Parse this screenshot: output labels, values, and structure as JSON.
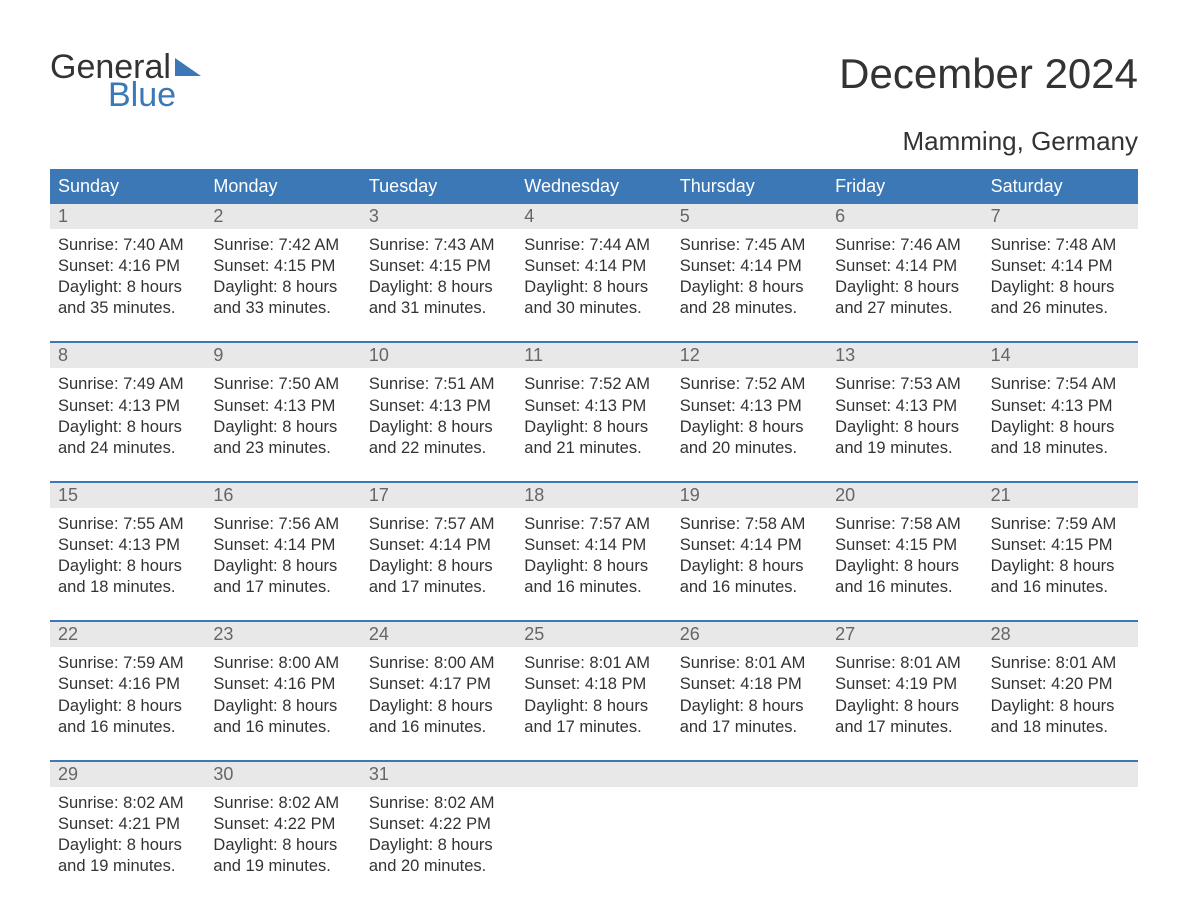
{
  "logo": {
    "word1": "General",
    "word2": "Blue"
  },
  "title": "December 2024",
  "location": "Mamming, Germany",
  "colors": {
    "header_bg": "#3b78b5",
    "header_fg": "#ffffff",
    "daynum_bg": "#e8e8e8",
    "daynum_fg": "#666666",
    "rule": "#3b78b5",
    "text": "#333333",
    "page_bg": "#ffffff"
  },
  "fonts": {
    "title_size": 42,
    "location_size": 26,
    "dow_size": 18,
    "body_size": 16.5
  },
  "dow": [
    "Sunday",
    "Monday",
    "Tuesday",
    "Wednesday",
    "Thursday",
    "Friday",
    "Saturday"
  ],
  "weeks": [
    [
      {
        "num": "1",
        "sunrise": "Sunrise: 7:40 AM",
        "sunset": "Sunset: 4:16 PM",
        "d1": "Daylight: 8 hours",
        "d2": "and 35 minutes."
      },
      {
        "num": "2",
        "sunrise": "Sunrise: 7:42 AM",
        "sunset": "Sunset: 4:15 PM",
        "d1": "Daylight: 8 hours",
        "d2": "and 33 minutes."
      },
      {
        "num": "3",
        "sunrise": "Sunrise: 7:43 AM",
        "sunset": "Sunset: 4:15 PM",
        "d1": "Daylight: 8 hours",
        "d2": "and 31 minutes."
      },
      {
        "num": "4",
        "sunrise": "Sunrise: 7:44 AM",
        "sunset": "Sunset: 4:14 PM",
        "d1": "Daylight: 8 hours",
        "d2": "and 30 minutes."
      },
      {
        "num": "5",
        "sunrise": "Sunrise: 7:45 AM",
        "sunset": "Sunset: 4:14 PM",
        "d1": "Daylight: 8 hours",
        "d2": "and 28 minutes."
      },
      {
        "num": "6",
        "sunrise": "Sunrise: 7:46 AM",
        "sunset": "Sunset: 4:14 PM",
        "d1": "Daylight: 8 hours",
        "d2": "and 27 minutes."
      },
      {
        "num": "7",
        "sunrise": "Sunrise: 7:48 AM",
        "sunset": "Sunset: 4:14 PM",
        "d1": "Daylight: 8 hours",
        "d2": "and 26 minutes."
      }
    ],
    [
      {
        "num": "8",
        "sunrise": "Sunrise: 7:49 AM",
        "sunset": "Sunset: 4:13 PM",
        "d1": "Daylight: 8 hours",
        "d2": "and 24 minutes."
      },
      {
        "num": "9",
        "sunrise": "Sunrise: 7:50 AM",
        "sunset": "Sunset: 4:13 PM",
        "d1": "Daylight: 8 hours",
        "d2": "and 23 minutes."
      },
      {
        "num": "10",
        "sunrise": "Sunrise: 7:51 AM",
        "sunset": "Sunset: 4:13 PM",
        "d1": "Daylight: 8 hours",
        "d2": "and 22 minutes."
      },
      {
        "num": "11",
        "sunrise": "Sunrise: 7:52 AM",
        "sunset": "Sunset: 4:13 PM",
        "d1": "Daylight: 8 hours",
        "d2": "and 21 minutes."
      },
      {
        "num": "12",
        "sunrise": "Sunrise: 7:52 AM",
        "sunset": "Sunset: 4:13 PM",
        "d1": "Daylight: 8 hours",
        "d2": "and 20 minutes."
      },
      {
        "num": "13",
        "sunrise": "Sunrise: 7:53 AM",
        "sunset": "Sunset: 4:13 PM",
        "d1": "Daylight: 8 hours",
        "d2": "and 19 minutes."
      },
      {
        "num": "14",
        "sunrise": "Sunrise: 7:54 AM",
        "sunset": "Sunset: 4:13 PM",
        "d1": "Daylight: 8 hours",
        "d2": "and 18 minutes."
      }
    ],
    [
      {
        "num": "15",
        "sunrise": "Sunrise: 7:55 AM",
        "sunset": "Sunset: 4:13 PM",
        "d1": "Daylight: 8 hours",
        "d2": "and 18 minutes."
      },
      {
        "num": "16",
        "sunrise": "Sunrise: 7:56 AM",
        "sunset": "Sunset: 4:14 PM",
        "d1": "Daylight: 8 hours",
        "d2": "and 17 minutes."
      },
      {
        "num": "17",
        "sunrise": "Sunrise: 7:57 AM",
        "sunset": "Sunset: 4:14 PM",
        "d1": "Daylight: 8 hours",
        "d2": "and 17 minutes."
      },
      {
        "num": "18",
        "sunrise": "Sunrise: 7:57 AM",
        "sunset": "Sunset: 4:14 PM",
        "d1": "Daylight: 8 hours",
        "d2": "and 16 minutes."
      },
      {
        "num": "19",
        "sunrise": "Sunrise: 7:58 AM",
        "sunset": "Sunset: 4:14 PM",
        "d1": "Daylight: 8 hours",
        "d2": "and 16 minutes."
      },
      {
        "num": "20",
        "sunrise": "Sunrise: 7:58 AM",
        "sunset": "Sunset: 4:15 PM",
        "d1": "Daylight: 8 hours",
        "d2": "and 16 minutes."
      },
      {
        "num": "21",
        "sunrise": "Sunrise: 7:59 AM",
        "sunset": "Sunset: 4:15 PM",
        "d1": "Daylight: 8 hours",
        "d2": "and 16 minutes."
      }
    ],
    [
      {
        "num": "22",
        "sunrise": "Sunrise: 7:59 AM",
        "sunset": "Sunset: 4:16 PM",
        "d1": "Daylight: 8 hours",
        "d2": "and 16 minutes."
      },
      {
        "num": "23",
        "sunrise": "Sunrise: 8:00 AM",
        "sunset": "Sunset: 4:16 PM",
        "d1": "Daylight: 8 hours",
        "d2": "and 16 minutes."
      },
      {
        "num": "24",
        "sunrise": "Sunrise: 8:00 AM",
        "sunset": "Sunset: 4:17 PM",
        "d1": "Daylight: 8 hours",
        "d2": "and 16 minutes."
      },
      {
        "num": "25",
        "sunrise": "Sunrise: 8:01 AM",
        "sunset": "Sunset: 4:18 PM",
        "d1": "Daylight: 8 hours",
        "d2": "and 17 minutes."
      },
      {
        "num": "26",
        "sunrise": "Sunrise: 8:01 AM",
        "sunset": "Sunset: 4:18 PM",
        "d1": "Daylight: 8 hours",
        "d2": "and 17 minutes."
      },
      {
        "num": "27",
        "sunrise": "Sunrise: 8:01 AM",
        "sunset": "Sunset: 4:19 PM",
        "d1": "Daylight: 8 hours",
        "d2": "and 17 minutes."
      },
      {
        "num": "28",
        "sunrise": "Sunrise: 8:01 AM",
        "sunset": "Sunset: 4:20 PM",
        "d1": "Daylight: 8 hours",
        "d2": "and 18 minutes."
      }
    ],
    [
      {
        "num": "29",
        "sunrise": "Sunrise: 8:02 AM",
        "sunset": "Sunset: 4:21 PM",
        "d1": "Daylight: 8 hours",
        "d2": "and 19 minutes."
      },
      {
        "num": "30",
        "sunrise": "Sunrise: 8:02 AM",
        "sunset": "Sunset: 4:22 PM",
        "d1": "Daylight: 8 hours",
        "d2": "and 19 minutes."
      },
      {
        "num": "31",
        "sunrise": "Sunrise: 8:02 AM",
        "sunset": "Sunset: 4:22 PM",
        "d1": "Daylight: 8 hours",
        "d2": "and 20 minutes."
      },
      null,
      null,
      null,
      null
    ]
  ]
}
